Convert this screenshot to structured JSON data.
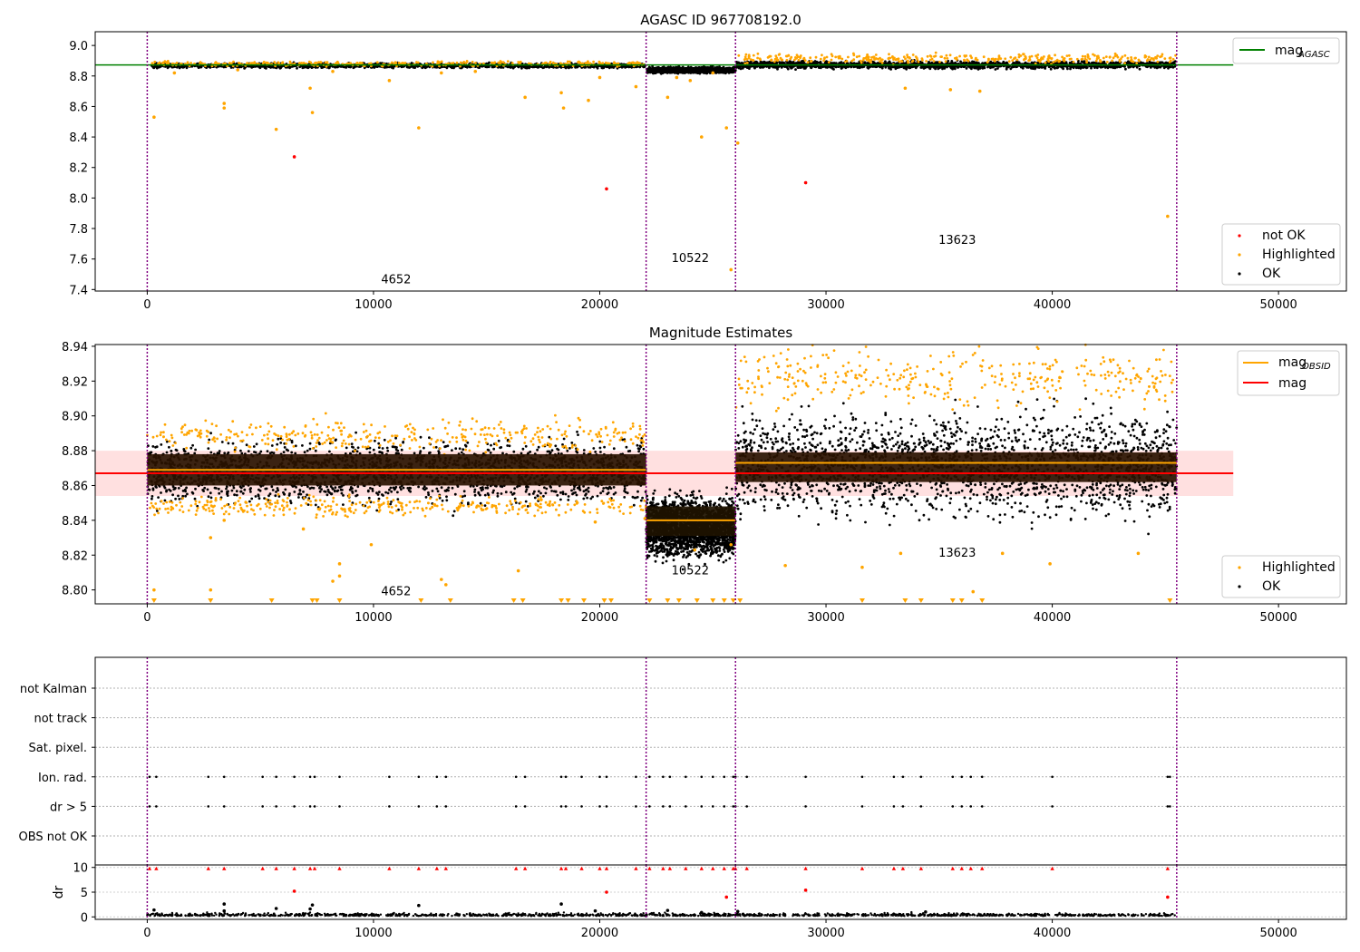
{
  "chart_data": [
    {
      "type": "scatter",
      "title": "AGASC ID 967708192.0",
      "xlim": [
        -2300,
        53000
      ],
      "ylim": [
        7.39,
        9.09
      ],
      "xticks": [
        0,
        10000,
        20000,
        30000,
        40000,
        50000
      ],
      "xtick_labels": [
        "0",
        "10000",
        "20000",
        "30000",
        "40000",
        "50000"
      ],
      "yticks": [
        7.4,
        7.6,
        7.8,
        8.0,
        8.2,
        8.4,
        8.6,
        8.8,
        9.0
      ],
      "ytick_labels": [
        "7.4",
        "7.6",
        "7.8",
        "8.0",
        "8.2",
        "8.4",
        "8.6",
        "8.8",
        "9.0"
      ],
      "obs_boundaries": [
        0,
        22050,
        26000,
        45500
      ],
      "obs_labels": [
        {
          "text": "4652",
          "x": 11000,
          "y": 7.44
        },
        {
          "text": "10522",
          "x": 24000,
          "y": 7.58
        },
        {
          "text": "13623",
          "x": 35800,
          "y": 7.7
        }
      ],
      "lines": [
        {
          "name": "mag_AGASC",
          "label_main": "mag",
          "label_sub": "AGASC",
          "color": "#008000",
          "x": [
            -2300,
            48000
          ],
          "y": [
            8.872,
            8.872
          ]
        }
      ],
      "segments": [
        {
          "x": [
            200,
            22000
          ],
          "center": 8.868,
          "spread": 0.01,
          "color": "#000000"
        },
        {
          "x": [
            22100,
            26000
          ],
          "center": 8.838,
          "spread": 0.012,
          "color": "#000000"
        },
        {
          "x": [
            26050,
            45450
          ],
          "center": 8.872,
          "spread": 0.016,
          "color": "#000000"
        },
        {
          "x": [
            26050,
            45450
          ],
          "center": 8.915,
          "spread": 0.02,
          "color": "#ffa500",
          "sparse": true
        },
        {
          "x": [
            200,
            22000
          ],
          "center": 8.88,
          "spread": 0.012,
          "color": "#ffa500",
          "sparse": true
        }
      ],
      "series": [
        {
          "name": "not OK",
          "color": "#ff0000",
          "points": [
            [
              6500,
              8.27
            ],
            [
              20300,
              8.06
            ],
            [
              29100,
              8.1
            ]
          ]
        },
        {
          "name": "Highlighted",
          "color": "#ffa500",
          "points": [
            [
              300,
              8.53
            ],
            [
              3400,
              8.62
            ],
            [
              3400,
              8.59
            ],
            [
              5700,
              8.45
            ],
            [
              7300,
              8.56
            ],
            [
              7200,
              8.72
            ],
            [
              12000,
              8.46
            ],
            [
              10700,
              8.77
            ],
            [
              18300,
              8.69
            ],
            [
              18400,
              8.59
            ],
            [
              16700,
              8.66
            ],
            [
              19500,
              8.64
            ],
            [
              20000,
              8.79
            ],
            [
              21600,
              8.73
            ],
            [
              23000,
              8.66
            ],
            [
              24500,
              8.4
            ],
            [
              25600,
              8.46
            ],
            [
              26100,
              8.36
            ],
            [
              25800,
              7.53
            ],
            [
              24000,
              8.77
            ],
            [
              23400,
              8.79
            ],
            [
              25000,
              8.82
            ],
            [
              45100,
              7.88
            ],
            [
              33500,
              8.72
            ],
            [
              35500,
              8.71
            ],
            [
              36800,
              8.7
            ],
            [
              1200,
              8.82
            ],
            [
              4000,
              8.84
            ],
            [
              8200,
              8.83
            ],
            [
              13000,
              8.82
            ],
            [
              14500,
              8.83
            ]
          ]
        }
      ],
      "legend_location": "lower right",
      "legend": [
        {
          "label": "not OK",
          "color": "#ff0000"
        },
        {
          "label": "Highlighted",
          "color": "#ffa500"
        },
        {
          "label": "OK",
          "color": "#000000"
        }
      ],
      "line_legend_location": "upper right"
    },
    {
      "type": "scatter",
      "title": "Magnitude Estimates",
      "xlim": [
        -2300,
        53000
      ],
      "ylim": [
        8.792,
        8.941
      ],
      "xticks": [
        0,
        10000,
        20000,
        30000,
        40000,
        50000
      ],
      "xtick_labels": [
        "0",
        "10000",
        "20000",
        "30000",
        "40000",
        "50000"
      ],
      "yticks": [
        8.8,
        8.82,
        8.84,
        8.86,
        8.88,
        8.9,
        8.92,
        8.94
      ],
      "ytick_labels": [
        "8.80",
        "8.82",
        "8.84",
        "8.86",
        "8.88",
        "8.90",
        "8.92",
        "8.94"
      ],
      "obs_boundaries": [
        0,
        22050,
        26000,
        45500
      ],
      "obs_labels": [
        {
          "text": "4652",
          "x": 11000,
          "y": 8.797
        },
        {
          "text": "10522",
          "x": 24000,
          "y": 8.809
        },
        {
          "text": "13623",
          "x": 35800,
          "y": 8.819
        }
      ],
      "band": {
        "x": [
          -2300,
          48000
        ],
        "y": [
          8.854,
          8.88
        ],
        "color": "#ff0000",
        "opacity": 0.12
      },
      "lines": [
        {
          "name": "mag",
          "label_main": "mag",
          "label_sub": "",
          "color": "#ff0000",
          "x": [
            -2300,
            48000
          ],
          "y": [
            8.867,
            8.867
          ]
        },
        {
          "name": "mag_OBSID",
          "label_main": "mag",
          "label_sub": "OBSID",
          "color": "#ffa500",
          "x": [
            0,
            22050
          ],
          "y": [
            8.869,
            8.869
          ]
        },
        {
          "name": "mag_OBSID_2",
          "label_main": "",
          "label_sub": "",
          "color": "#ffa500",
          "x": [
            22050,
            26000
          ],
          "y": [
            8.84,
            8.84
          ]
        },
        {
          "name": "mag_OBSID_3",
          "label_main": "",
          "label_sub": "",
          "color": "#ffa500",
          "x": [
            26000,
            45500
          ],
          "y": [
            8.873,
            8.873
          ]
        }
      ],
      "boxes": [
        {
          "x": [
            0,
            22050
          ],
          "y": [
            8.86,
            8.878
          ],
          "color": "#2a1200"
        },
        {
          "x": [
            22050,
            26000
          ],
          "y": [
            8.831,
            8.848
          ],
          "color": "#1e1200"
        },
        {
          "x": [
            26000,
            45500
          ],
          "y": [
            8.862,
            8.879
          ],
          "color": "#2a1200"
        }
      ],
      "segments": [
        {
          "x": [
            0,
            22050
          ],
          "center": 8.868,
          "spread": 0.012,
          "color": "#000000"
        },
        {
          "x": [
            22050,
            26000
          ],
          "center": 8.836,
          "spread": 0.011,
          "color": "#000000"
        },
        {
          "x": [
            26000,
            45500
          ],
          "center": 8.872,
          "spread": 0.019,
          "color": "#000000"
        },
        {
          "x": [
            26000,
            45500
          ],
          "center": 8.922,
          "spread": 0.012,
          "color": "#ffa500",
          "sparse": true
        },
        {
          "x": [
            0,
            22050
          ],
          "center": 8.889,
          "spread": 0.006,
          "color": "#ffa500",
          "sparse": true
        },
        {
          "x": [
            0,
            22050
          ],
          "center": 8.848,
          "spread": 0.004,
          "color": "#ffa500",
          "sparse": true
        }
      ],
      "series": [
        {
          "name": "Highlighted",
          "color": "#ffa500",
          "points": [
            [
              300,
              8.8
            ],
            [
              2800,
              8.83
            ],
            [
              2800,
              8.8
            ],
            [
              3400,
              8.84
            ],
            [
              6900,
              8.835
            ],
            [
              8200,
              8.805
            ],
            [
              8500,
              8.815
            ],
            [
              8500,
              8.808
            ],
            [
              9900,
              8.826
            ],
            [
              13000,
              8.806
            ],
            [
              13200,
              8.803
            ],
            [
              16400,
              8.811
            ],
            [
              19800,
              8.839
            ],
            [
              28200,
              8.814
            ],
            [
              31600,
              8.813
            ],
            [
              33300,
              8.821
            ],
            [
              36500,
              8.799
            ],
            [
              37800,
              8.821
            ],
            [
              39900,
              8.815
            ],
            [
              43800,
              8.821
            ],
            [
              22000,
              8.841
            ],
            [
              24200,
              8.823
            ],
            [
              25800,
              8.826
            ]
          ]
        }
      ],
      "clipped_markers": [
        300,
        2800,
        5500,
        7300,
        7500,
        8500,
        12100,
        13400,
        16200,
        16600,
        18300,
        18600,
        19300,
        20200,
        20500,
        22200,
        23000,
        23500,
        24300,
        25000,
        25500,
        25900,
        26200,
        31600,
        33500,
        34200,
        35600,
        36000,
        36900,
        45200
      ],
      "legend_location": "lower right",
      "legend": [
        {
          "label": "Highlighted",
          "color": "#ffa500"
        },
        {
          "label": "OK",
          "color": "#000000"
        }
      ],
      "line_legend_location": "upper right"
    },
    {
      "type": "scatter",
      "title": "",
      "xlim": [
        -2300,
        53000
      ],
      "xticks": [
        0,
        10000,
        20000,
        30000,
        40000,
        50000
      ],
      "xtick_labels": [
        "0",
        "10000",
        "20000",
        "30000",
        "40000",
        "50000"
      ],
      "obs_boundaries": [
        0,
        22050,
        26000,
        45500
      ],
      "category_labels": [
        "not Kalman",
        "not track",
        "Sat. pixel.",
        "Ion. rad.",
        "dr > 5",
        "OBS not OK"
      ],
      "flag_x": [
        100,
        400,
        2700,
        3400,
        5100,
        5700,
        6500,
        7200,
        7400,
        8500,
        10700,
        12000,
        12800,
        13200,
        16300,
        16700,
        18300,
        18500,
        19200,
        20000,
        20300,
        21600,
        22200,
        22800,
        23100,
        23800,
        24500,
        25000,
        25500,
        25900,
        26000,
        26500,
        29100,
        31600,
        33000,
        33400,
        34200,
        35600,
        36000,
        36400,
        36900,
        40000,
        45100,
        45200
      ],
      "flag_rows": [
        "Ion. rad.",
        "dr > 5"
      ]
    },
    {
      "type": "scatter",
      "ylabel": "dr",
      "xlim": [
        -2300,
        53000
      ],
      "ylim": [
        -0.5,
        10.5
      ],
      "xticks": [
        0,
        10000,
        20000,
        30000,
        40000,
        50000
      ],
      "xtick_labels": [
        "0",
        "10000",
        "20000",
        "30000",
        "40000",
        "50000"
      ],
      "yticks": [
        0,
        5,
        10
      ],
      "ytick_labels": [
        "0",
        "5",
        "10"
      ],
      "obs_boundaries": [
        0,
        22050,
        26000,
        45500
      ],
      "baseline": {
        "x": [
          0,
          45500
        ],
        "y": 0.2,
        "spread": 0.35,
        "color": "#000000"
      },
      "series": [
        {
          "name": "OK",
          "color": "#000000",
          "points": [
            [
              300,
              1.4
            ],
            [
              3400,
              2.6
            ],
            [
              3400,
              1.2
            ],
            [
              5700,
              1.7
            ],
            [
              7200,
              1.6
            ],
            [
              7300,
              2.4
            ],
            [
              12000,
              2.3
            ],
            [
              18300,
              2.6
            ],
            [
              19800,
              1.2
            ],
            [
              23000,
              1.3
            ],
            [
              24500,
              0.9
            ],
            [
              26100,
              1.1
            ],
            [
              34400,
              1.0
            ]
          ]
        },
        {
          "name": "clipped",
          "color": "#ff0000",
          "points": [
            [
              6500,
              5.2
            ],
            [
              20300,
              5.0
            ],
            [
              25600,
              4.0
            ],
            [
              29100,
              5.4
            ],
            [
              45100,
              4.0
            ]
          ]
        }
      ],
      "clipped_x": [
        100,
        400,
        2700,
        3400,
        5100,
        5700,
        6500,
        7200,
        7400,
        8500,
        10700,
        12000,
        12800,
        13200,
        16300,
        16700,
        18300,
        18500,
        19200,
        20000,
        20300,
        21600,
        22200,
        22800,
        23100,
        23800,
        24500,
        25000,
        25500,
        25900,
        26000,
        26500,
        29100,
        31600,
        33000,
        33400,
        34200,
        35600,
        36000,
        36400,
        36900,
        40000,
        45100
      ],
      "clipped_color": "#ff0000"
    }
  ]
}
